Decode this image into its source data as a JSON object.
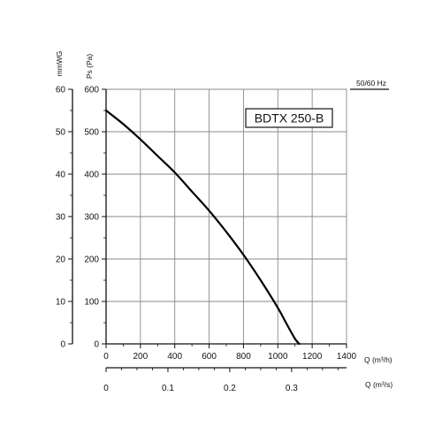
{
  "chart_data": {
    "type": "line",
    "model_label": "BDTX 250-B",
    "frequency_label": "50/60 Hz",
    "xlabel": "Q (m³/h)",
    "xlabel_secondary": "Q (m³/s)",
    "ylabel": "Ps (Pa)",
    "ylabel_secondary": "mmWG",
    "xlim": [
      0,
      1400
    ],
    "ylim": [
      0,
      600
    ],
    "xlim_secondary": [
      0,
      0.3888
    ],
    "ylim_secondary": [
      0,
      60
    ],
    "x_ticks": [
      "0",
      "200",
      "400",
      "600",
      "800",
      "1000",
      "1200",
      "1400"
    ],
    "y_ticks": [
      "0",
      "100",
      "200",
      "300",
      "400",
      "500",
      "600"
    ],
    "y_ticks_secondary": [
      "0",
      "10",
      "20",
      "30",
      "40",
      "50",
      "60"
    ],
    "x_ticks_secondary": [
      "0",
      "0.1",
      "0.2",
      "0.3"
    ],
    "grid": true,
    "series": [
      {
        "name": "",
        "x": [
          0,
          100,
          200,
          300,
          400,
          500,
          600,
          700,
          800,
          900,
          1000,
          1050,
          1100,
          1125
        ],
        "y": [
          550,
          518,
          482,
          443,
          404,
          359,
          314,
          264,
          210,
          150,
          85,
          48,
          12,
          0
        ]
      }
    ]
  }
}
